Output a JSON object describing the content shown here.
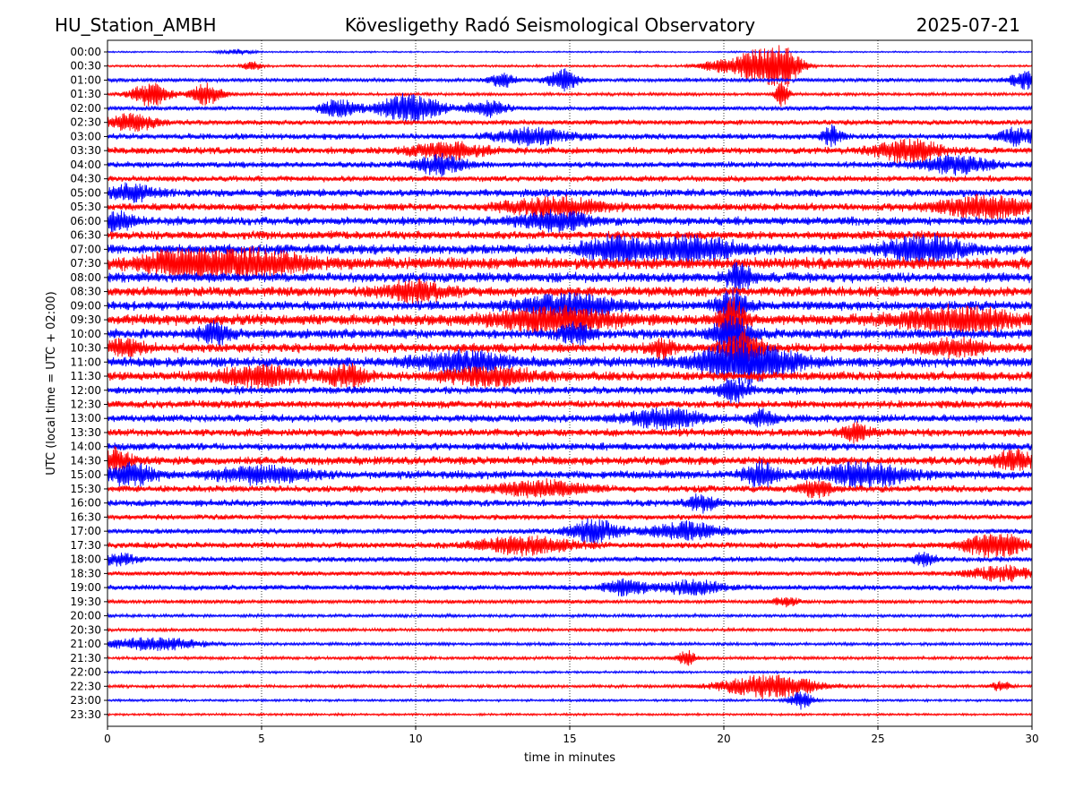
{
  "header": {
    "station": "HU_Station_AMBH",
    "title": "Kövesligethy Radó Seismological Observatory",
    "date": "2025-07-21"
  },
  "chart_data": {
    "type": "line",
    "xlabel": "time in minutes",
    "ylabel": "UTC (local time = UTC + 02:00)",
    "xlim": [
      0,
      30
    ],
    "x_ticks": [
      0,
      5,
      10,
      15,
      20,
      25,
      30
    ],
    "grid": "vertical dotted lines at 5-minute marks",
    "trace_colors": [
      "#0000ff",
      "#ff0000"
    ],
    "rows": [
      "00:00",
      "00:30",
      "01:00",
      "01:30",
      "02:00",
      "02:30",
      "03:00",
      "03:30",
      "04:00",
      "04:30",
      "05:00",
      "05:30",
      "06:00",
      "06:30",
      "07:00",
      "07:30",
      "08:00",
      "08:30",
      "09:00",
      "09:30",
      "10:00",
      "10:30",
      "11:00",
      "11:30",
      "12:00",
      "12:30",
      "13:00",
      "13:30",
      "14:00",
      "14:30",
      "15:00",
      "15:30",
      "16:00",
      "16:30",
      "17:00",
      "17:30",
      "18:00",
      "18:30",
      "19:00",
      "19:30",
      "20:00",
      "20:30",
      "21:00",
      "21:30",
      "22:00",
      "22:30",
      "23:00",
      "23:30"
    ],
    "row_amplitude": [
      1,
      1.5,
      2.5,
      2,
      3,
      3.5,
      4,
      4.5,
      4,
      4,
      5,
      5,
      5.5,
      5.5,
      6.5,
      7.5,
      6.5,
      6.5,
      6,
      7,
      6.5,
      6,
      6.5,
      6,
      5,
      5,
      5,
      5,
      5,
      5.5,
      5.5,
      4.5,
      4.5,
      3.5,
      3.5,
      4,
      3.5,
      3,
      3.5,
      2.5,
      2,
      2,
      2,
      2,
      1.5,
      2,
      1.5,
      1.5
    ],
    "events": [
      {
        "row": "00:00",
        "minute": 4.2,
        "amplitude": 3,
        "width": 0.5
      },
      {
        "row": "00:30",
        "minute": 4.7,
        "amplitude": 5,
        "width": 0.3
      },
      {
        "row": "00:30",
        "minute": 19.8,
        "amplitude": 6,
        "width": 0.6
      },
      {
        "row": "00:30",
        "minute": 21.0,
        "amplitude": 16,
        "width": 0.7
      },
      {
        "row": "00:30",
        "minute": 21.9,
        "amplitude": 22,
        "width": 0.6
      },
      {
        "row": "01:00",
        "minute": 14.8,
        "amplitude": 12,
        "width": 0.5
      },
      {
        "row": "01:00",
        "minute": 12.8,
        "amplitude": 8,
        "width": 0.4
      },
      {
        "row": "01:00",
        "minute": 29.8,
        "amplitude": 9,
        "width": 0.5
      },
      {
        "row": "01:30",
        "minute": 1.4,
        "amplitude": 14,
        "width": 0.6
      },
      {
        "row": "01:30",
        "minute": 3.2,
        "amplitude": 12,
        "width": 0.5
      },
      {
        "row": "01:30",
        "minute": 21.9,
        "amplitude": 18,
        "width": 0.2
      },
      {
        "row": "02:00",
        "minute": 7.5,
        "amplitude": 9,
        "width": 0.6
      },
      {
        "row": "02:00",
        "minute": 9.8,
        "amplitude": 15,
        "width": 1.0
      },
      {
        "row": "02:00",
        "minute": 12.3,
        "amplitude": 9,
        "width": 0.6
      },
      {
        "row": "02:30",
        "minute": 0.8,
        "amplitude": 8,
        "width": 0.8
      },
      {
        "row": "03:00",
        "minute": 13.8,
        "amplitude": 8,
        "width": 1.2
      },
      {
        "row": "03:00",
        "minute": 23.5,
        "amplitude": 10,
        "width": 0.3
      },
      {
        "row": "03:00",
        "minute": 29.5,
        "amplitude": 9,
        "width": 0.6
      },
      {
        "row": "03:30",
        "minute": 11.0,
        "amplitude": 8,
        "width": 1.2
      },
      {
        "row": "03:30",
        "minute": 26.0,
        "amplitude": 12,
        "width": 1.0
      },
      {
        "row": "04:00",
        "minute": 10.8,
        "amplitude": 10,
        "width": 0.8
      },
      {
        "row": "04:00",
        "minute": 27.5,
        "amplitude": 9,
        "width": 1.2
      },
      {
        "row": "05:00",
        "minute": 0.8,
        "amplitude": 8,
        "width": 0.8
      },
      {
        "row": "05:30",
        "minute": 14.5,
        "amplitude": 10,
        "width": 1.5
      },
      {
        "row": "05:30",
        "minute": 28.5,
        "amplitude": 12,
        "width": 1.5
      },
      {
        "row": "06:00",
        "minute": 0.3,
        "amplitude": 10,
        "width": 0.6
      },
      {
        "row": "06:00",
        "minute": 14.5,
        "amplitude": 9,
        "width": 1.2
      },
      {
        "row": "07:00",
        "minute": 16.5,
        "amplitude": 13,
        "width": 1.0
      },
      {
        "row": "07:00",
        "minute": 19.0,
        "amplitude": 12,
        "width": 1.5
      },
      {
        "row": "07:00",
        "minute": 26.5,
        "amplitude": 14,
        "width": 1.2
      },
      {
        "row": "07:30",
        "minute": 2.5,
        "amplitude": 12,
        "width": 1.5
      },
      {
        "row": "07:30",
        "minute": 5.0,
        "amplitude": 12,
        "width": 1.5
      },
      {
        "row": "08:00",
        "minute": 20.5,
        "amplitude": 14,
        "width": 0.4
      },
      {
        "row": "08:30",
        "minute": 10.0,
        "amplitude": 10,
        "width": 1.0
      },
      {
        "row": "09:00",
        "minute": 15.0,
        "amplitude": 12,
        "width": 1.5
      },
      {
        "row": "09:00",
        "minute": 20.3,
        "amplitude": 16,
        "width": 0.5
      },
      {
        "row": "09:30",
        "minute": 14.5,
        "amplitude": 12,
        "width": 2.0
      },
      {
        "row": "09:30",
        "minute": 20.3,
        "amplitude": 22,
        "width": 0.4
      },
      {
        "row": "09:30",
        "minute": 27.5,
        "amplitude": 12,
        "width": 2.0
      },
      {
        "row": "10:00",
        "minute": 3.5,
        "amplitude": 10,
        "width": 0.5
      },
      {
        "row": "10:00",
        "minute": 15.2,
        "amplitude": 11,
        "width": 0.5
      },
      {
        "row": "10:00",
        "minute": 20.3,
        "amplitude": 16,
        "width": 0.6
      },
      {
        "row": "10:30",
        "minute": 0.6,
        "amplitude": 9,
        "width": 0.6
      },
      {
        "row": "10:30",
        "minute": 18.0,
        "amplitude": 10,
        "width": 0.4
      },
      {
        "row": "10:30",
        "minute": 20.6,
        "amplitude": 18,
        "width": 0.6
      },
      {
        "row": "10:30",
        "minute": 27.5,
        "amplitude": 8,
        "width": 1.0
      },
      {
        "row": "11:00",
        "minute": 11.5,
        "amplitude": 10,
        "width": 1.5
      },
      {
        "row": "11:00",
        "minute": 20.7,
        "amplitude": 22,
        "width": 1.5
      },
      {
        "row": "11:30",
        "minute": 5.0,
        "amplitude": 10,
        "width": 1.5
      },
      {
        "row": "11:30",
        "minute": 7.8,
        "amplitude": 11,
        "width": 0.6
      },
      {
        "row": "11:30",
        "minute": 12.5,
        "amplitude": 9,
        "width": 1.5
      },
      {
        "row": "12:00",
        "minute": 20.3,
        "amplitude": 12,
        "width": 0.5
      },
      {
        "row": "13:00",
        "minute": 18.0,
        "amplitude": 10,
        "width": 1.2
      },
      {
        "row": "13:00",
        "minute": 21.3,
        "amplitude": 9,
        "width": 0.4
      },
      {
        "row": "13:30",
        "minute": 24.3,
        "amplitude": 9,
        "width": 0.5
      },
      {
        "row": "14:30",
        "minute": 0.2,
        "amplitude": 12,
        "width": 0.5
      },
      {
        "row": "14:30",
        "minute": 29.5,
        "amplitude": 9,
        "width": 0.8
      },
      {
        "row": "15:00",
        "minute": 0.8,
        "amplitude": 12,
        "width": 0.7
      },
      {
        "row": "15:00",
        "minute": 5.0,
        "amplitude": 8,
        "width": 1.5
      },
      {
        "row": "15:00",
        "minute": 21.2,
        "amplitude": 13,
        "width": 0.5
      },
      {
        "row": "15:00",
        "minute": 24.5,
        "amplitude": 12,
        "width": 1.5
      },
      {
        "row": "15:30",
        "minute": 14.0,
        "amplitude": 8,
        "width": 1.5
      },
      {
        "row": "15:30",
        "minute": 23.0,
        "amplitude": 8,
        "width": 0.5
      },
      {
        "row": "16:00",
        "minute": 19.3,
        "amplitude": 8,
        "width": 0.5
      },
      {
        "row": "17:00",
        "minute": 15.8,
        "amplitude": 12,
        "width": 0.8
      },
      {
        "row": "17:00",
        "minute": 18.7,
        "amplitude": 9,
        "width": 1.2
      },
      {
        "row": "17:30",
        "minute": 13.5,
        "amplitude": 9,
        "width": 1.5
      },
      {
        "row": "17:30",
        "minute": 28.8,
        "amplitude": 13,
        "width": 1.0
      },
      {
        "row": "18:00",
        "minute": 0.4,
        "amplitude": 6,
        "width": 0.5
      },
      {
        "row": "18:00",
        "minute": 26.5,
        "amplitude": 6,
        "width": 0.4
      },
      {
        "row": "18:30",
        "minute": 29.0,
        "amplitude": 8,
        "width": 1.0
      },
      {
        "row": "19:00",
        "minute": 16.8,
        "amplitude": 8,
        "width": 0.7
      },
      {
        "row": "19:00",
        "minute": 19.0,
        "amplitude": 7,
        "width": 1.0
      },
      {
        "row": "19:30",
        "minute": 22.0,
        "amplitude": 5,
        "width": 0.4
      },
      {
        "row": "21:00",
        "minute": 1.5,
        "amplitude": 7,
        "width": 1.5
      },
      {
        "row": "21:30",
        "minute": 18.8,
        "amplitude": 8,
        "width": 0.3
      },
      {
        "row": "22:30",
        "minute": 21.5,
        "amplitude": 13,
        "width": 1.5
      },
      {
        "row": "22:30",
        "minute": 29.0,
        "amplitude": 5,
        "width": 0.3
      },
      {
        "row": "23:00",
        "minute": 22.5,
        "amplitude": 9,
        "width": 0.4
      }
    ]
  }
}
